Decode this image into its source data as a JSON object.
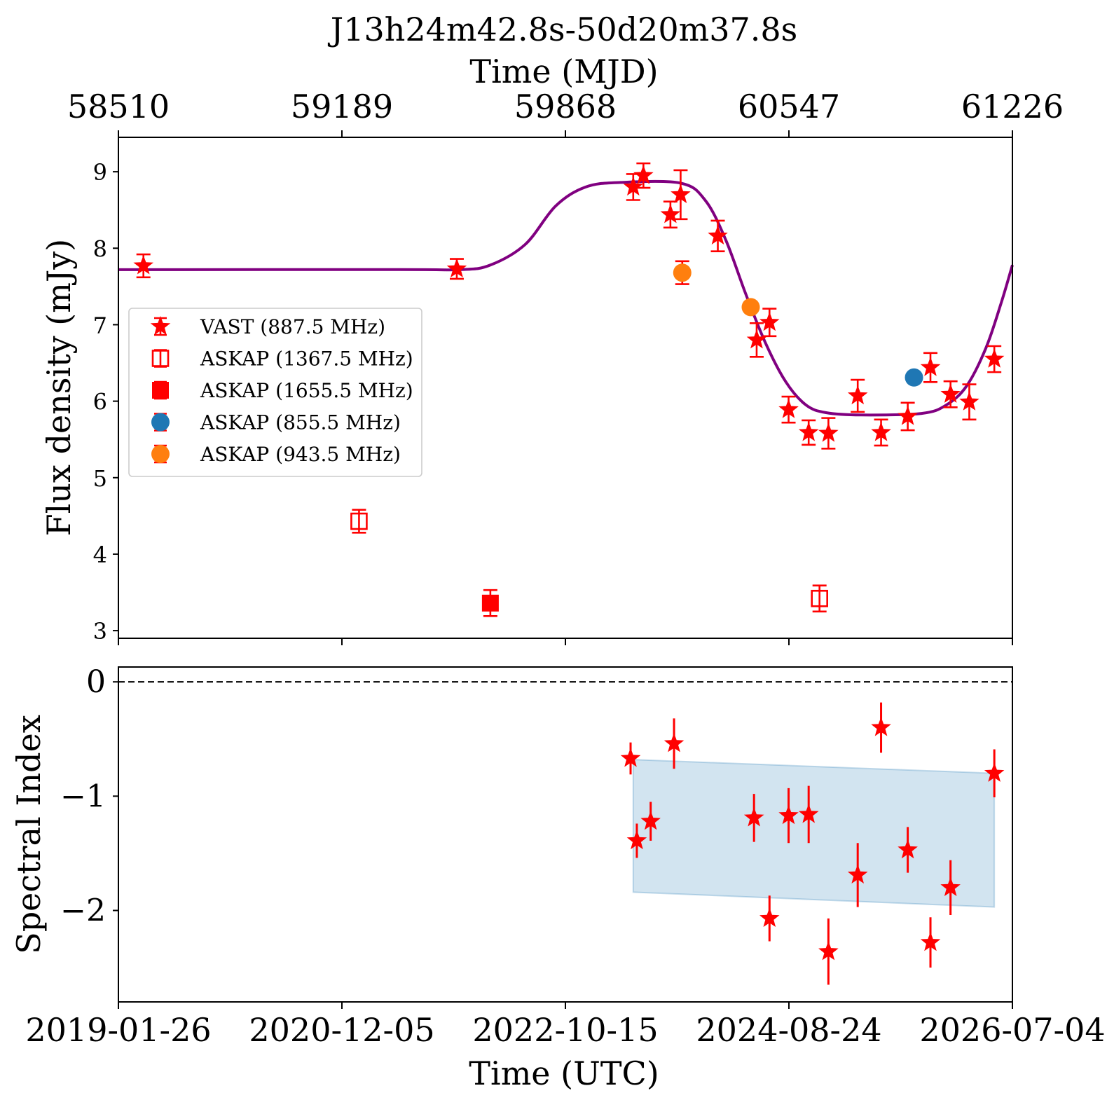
{
  "chart_data": [
    {
      "type": "scatter",
      "title": "J13h24m42.8s-50d20m37.8s",
      "xlabel": "Time (UTC)",
      "x_secondary_label": "Time (MJD)",
      "ylabel": "Flux density (mJy)",
      "xlim": [
        "2019-01-26",
        "2026-07-04"
      ],
      "x_ticks_utc": [
        "2019-01-26",
        "2020-12-05",
        "2022-10-15",
        "2024-08-24",
        "2026-07-04"
      ],
      "x_ticks_mjd": [
        "58510",
        "59189",
        "59868",
        "60547",
        "61226"
      ],
      "ylim": [
        2.9,
        9.45
      ],
      "y_ticks": [
        "3",
        "4",
        "5",
        "6",
        "7",
        "8",
        "9"
      ],
      "grid": false,
      "legend_position": "center-left",
      "series": [
        {
          "name": "VAST (887.5 MHz)",
          "marker": "star",
          "color": "#ff0000",
          "points": [
            {
              "x": "2019-04-12",
              "y": 7.77,
              "err": 0.15
            },
            {
              "x": "2021-11-19",
              "y": 7.73,
              "err": 0.13
            },
            {
              "x": "2023-05-09",
              "y": 8.8,
              "err": 0.17
            },
            {
              "x": "2023-06-09",
              "y": 8.95,
              "err": 0.16
            },
            {
              "x": "2023-08-30",
              "y": 8.44,
              "err": 0.17
            },
            {
              "x": "2023-09-30",
              "y": 8.7,
              "err": 0.32
            },
            {
              "x": "2024-01-21",
              "y": 8.16,
              "err": 0.2
            },
            {
              "x": "2024-05-18",
              "y": 6.8,
              "err": 0.22
            },
            {
              "x": "2024-06-26",
              "y": 7.03,
              "err": 0.18
            },
            {
              "x": "2024-08-23",
              "y": 5.89,
              "err": 0.17
            },
            {
              "x": "2024-10-23",
              "y": 5.59,
              "err": 0.16
            },
            {
              "x": "2024-12-22",
              "y": 5.58,
              "err": 0.2
            },
            {
              "x": "2025-03-21",
              "y": 6.07,
              "err": 0.21
            },
            {
              "x": "2025-05-31",
              "y": 5.59,
              "err": 0.17
            },
            {
              "x": "2025-08-20",
              "y": 5.8,
              "err": 0.18
            },
            {
              "x": "2025-10-28",
              "y": 6.44,
              "err": 0.19
            },
            {
              "x": "2025-12-28",
              "y": 6.09,
              "err": 0.17
            },
            {
              "x": "2026-02-23",
              "y": 5.99,
              "err": 0.23
            },
            {
              "x": "2026-05-10",
              "y": 6.55,
              "err": 0.17
            }
          ]
        },
        {
          "name": "ASKAP (1367.5 MHz)",
          "marker": "open-square",
          "color": "#ff0000",
          "points": [
            {
              "x": "2021-01-26",
              "y": 4.43,
              "err": 0.15
            },
            {
              "x": "2024-11-25",
              "y": 3.42,
              "err": 0.17
            }
          ]
        },
        {
          "name": "ASKAP (1655.5 MHz)",
          "marker": "filled-square",
          "color": "#ff0000",
          "points": [
            {
              "x": "2022-03-01",
              "y": 3.36,
              "err": 0.17
            }
          ]
        },
        {
          "name": "ASKAP (855.5 MHz)",
          "marker": "circle",
          "color": "#1f77b4",
          "points": [
            {
              "x": "2025-09-08",
              "y": 6.31,
              "err": 0.0
            }
          ]
        },
        {
          "name": "ASKAP (943.5 MHz)",
          "marker": "circle",
          "color": "#ff7f0e",
          "points": [
            {
              "x": "2023-10-05",
              "y": 7.68,
              "err": 0.15
            },
            {
              "x": "2024-04-30",
              "y": 7.23,
              "err": 0.0
            }
          ]
        }
      ],
      "model_curve": {
        "color": "#800080",
        "points": [
          {
            "x": "2019-01-26",
            "y": 7.72
          },
          {
            "x": "2021-06-01",
            "y": 7.72
          },
          {
            "x": "2021-12-01",
            "y": 7.72
          },
          {
            "x": "2022-03-01",
            "y": 7.78
          },
          {
            "x": "2022-06-15",
            "y": 8.05
          },
          {
            "x": "2022-09-15",
            "y": 8.55
          },
          {
            "x": "2022-12-15",
            "y": 8.8
          },
          {
            "x": "2023-04-01",
            "y": 8.86
          },
          {
            "x": "2023-10-01",
            "y": 8.85
          },
          {
            "x": "2023-12-15",
            "y": 8.62
          },
          {
            "x": "2024-02-15",
            "y": 8.1
          },
          {
            "x": "2024-04-15",
            "y": 7.4
          },
          {
            "x": "2024-06-15",
            "y": 6.75
          },
          {
            "x": "2024-08-15",
            "y": 6.25
          },
          {
            "x": "2024-10-15",
            "y": 5.95
          },
          {
            "x": "2024-12-15",
            "y": 5.85
          },
          {
            "x": "2025-04-01",
            "y": 5.82
          },
          {
            "x": "2025-10-01",
            "y": 5.84
          },
          {
            "x": "2025-12-15",
            "y": 5.95
          },
          {
            "x": "2026-02-15",
            "y": 6.2
          },
          {
            "x": "2026-04-15",
            "y": 6.7
          },
          {
            "x": "2026-06-01",
            "y": 7.3
          },
          {
            "x": "2026-07-04",
            "y": 7.78
          }
        ]
      }
    },
    {
      "type": "scatter",
      "xlabel": "Time (UTC)",
      "ylabel": "Spectral Index",
      "xlim": [
        "2019-01-26",
        "2026-07-04"
      ],
      "ylim": [
        -2.8,
        0.13
      ],
      "y_ticks": [
        "0",
        "−1",
        "−2"
      ],
      "reference_line": {
        "y": 0,
        "style": "dashed"
      },
      "band": {
        "color": "#1f77b4",
        "points": [
          {
            "x": "2023-05-09",
            "low": -1.84,
            "high": -0.68
          },
          {
            "x": "2026-05-10",
            "low": -1.97,
            "high": -0.8
          }
        ]
      },
      "series": [
        {
          "name": "",
          "marker": "star",
          "color": "#ff0000",
          "points": [
            {
              "x": "2023-05-01",
              "y": -0.67,
              "err": 0.14
            },
            {
              "x": "2023-05-20",
              "y": -1.39,
              "err": 0.15
            },
            {
              "x": "2023-07-01",
              "y": -1.22,
              "err": 0.17
            },
            {
              "x": "2023-09-10",
              "y": -0.54,
              "err": 0.22
            },
            {
              "x": "2024-05-10",
              "y": -1.19,
              "err": 0.21
            },
            {
              "x": "2024-06-26",
              "y": -2.07,
              "err": 0.2
            },
            {
              "x": "2024-08-23",
              "y": -1.17,
              "err": 0.24
            },
            {
              "x": "2024-10-23",
              "y": -1.16,
              "err": 0.25
            },
            {
              "x": "2024-12-22",
              "y": -2.36,
              "err": 0.29
            },
            {
              "x": "2025-03-21",
              "y": -1.69,
              "err": 0.28
            },
            {
              "x": "2025-05-31",
              "y": -0.4,
              "err": 0.22
            },
            {
              "x": "2025-08-20",
              "y": -1.47,
              "err": 0.2
            },
            {
              "x": "2025-10-28",
              "y": -2.28,
              "err": 0.22
            },
            {
              "x": "2025-12-28",
              "y": -1.8,
              "err": 0.24
            },
            {
              "x": "2026-05-10",
              "y": -0.8,
              "err": 0.21
            }
          ]
        }
      ]
    }
  ]
}
